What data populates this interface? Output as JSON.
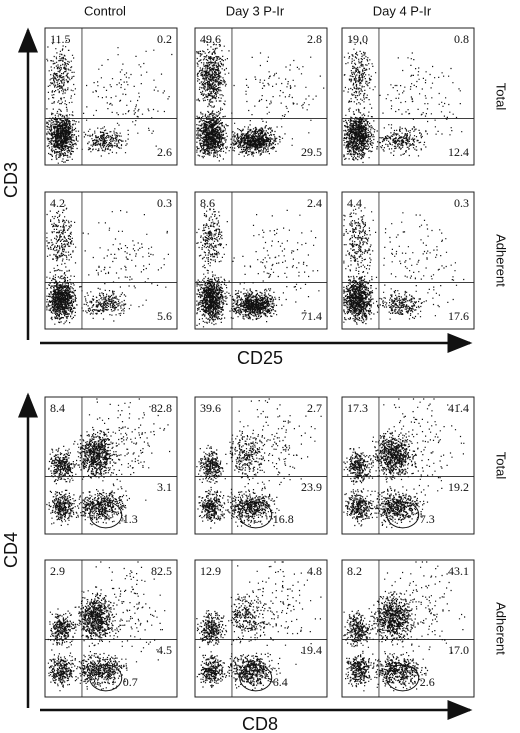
{
  "columns": [
    "Control",
    "Day 3 P-Ir",
    "Day 4 P-Ir"
  ],
  "sections": [
    {
      "y_axis": "CD3",
      "x_axis": "CD25",
      "rows": [
        {
          "label": "Total",
          "panels": [
            [
              "11.5",
              "0.2",
              "2.6"
            ],
            [
              "49.6",
              "2.8",
              "29.5"
            ],
            [
              "19.0",
              "0.8",
              "12.4"
            ]
          ]
        },
        {
          "label": "Adherent",
          "panels": [
            [
              "4.2",
              "0.3",
              "5.6"
            ],
            [
              "8.6",
              "2.4",
              "71.4"
            ],
            [
              "4.4",
              "0.3",
              "17.6"
            ]
          ]
        }
      ]
    },
    {
      "y_axis": "CD4",
      "x_axis": "CD8",
      "rows": [
        {
          "label": "Total",
          "panels": [
            [
              "8.4",
              "82.8",
              "3.1",
              "1.3"
            ],
            [
              "39.6",
              "2.7",
              "23.9",
              "16.8"
            ],
            [
              "17.3",
              "41.4",
              "19.2",
              "7.3"
            ]
          ]
        },
        {
          "label": "Adherent",
          "panels": [
            [
              "2.9",
              "82.5",
              "4.5",
              "0.7"
            ],
            [
              "12.9",
              "4.8",
              "19.4",
              "6.4"
            ],
            [
              "8.2",
              "43.1",
              "17.0",
              "2.6"
            ]
          ]
        }
      ]
    }
  ]
}
